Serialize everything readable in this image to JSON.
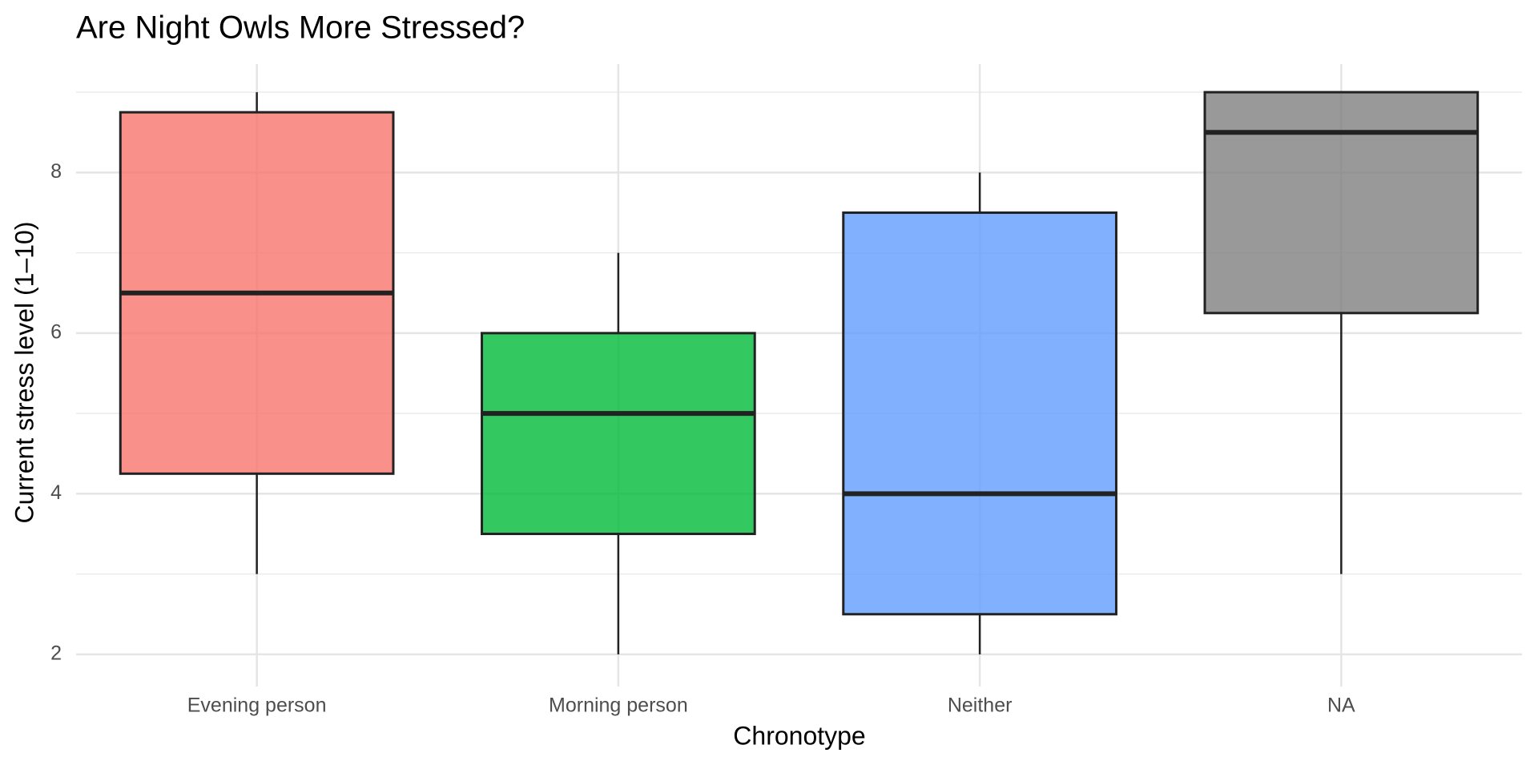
{
  "chart_data": {
    "type": "box",
    "title": "Are Night Owls More Stressed?",
    "x_label": "Chronotype",
    "y_label": "Current stress level (1–10)",
    "categories": [
      "Evening person",
      "Morning person",
      "Neither",
      "NA"
    ],
    "colors": [
      "#F8766D",
      "#00BA38",
      "#619CFF",
      "#7F7F7F"
    ],
    "boxes": [
      {
        "min": 3,
        "q1": 4.25,
        "median": 6.5,
        "q3": 8.75,
        "max": 9
      },
      {
        "min": 2,
        "q1": 3.5,
        "median": 5,
        "q3": 6,
        "max": 7
      },
      {
        "min": 2,
        "q1": 2.5,
        "median": 4,
        "q3": 7.5,
        "max": 8
      },
      {
        "min": 3,
        "q1": 6.25,
        "median": 8.5,
        "q3": 9,
        "max": 9
      }
    ],
    "ylim": [
      1.6,
      9.35
    ],
    "yticks": [
      2,
      4,
      6,
      8
    ],
    "y_minor_grid": [
      3,
      5,
      7,
      9
    ],
    "grid": true
  }
}
